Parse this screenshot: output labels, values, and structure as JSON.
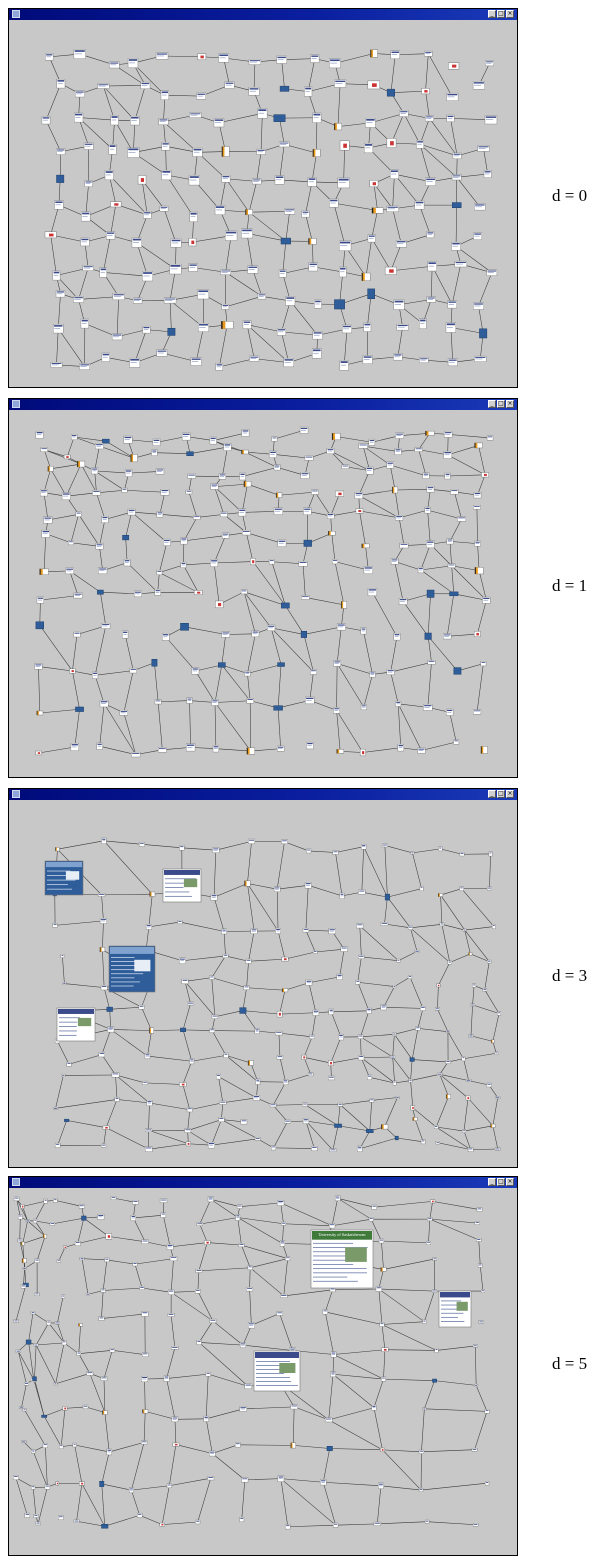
{
  "panels": [
    {
      "label": "d = 0",
      "seed": 11,
      "enlarged": []
    },
    {
      "label": "d = 1",
      "seed": 23,
      "enlarged": []
    },
    {
      "label": "d = 3",
      "seed": 37,
      "enlarged": [
        {
          "title": "",
          "theme": "blue"
        },
        {
          "title": "",
          "theme": "blue"
        },
        {
          "title": "",
          "theme": "white"
        },
        {
          "title": "",
          "theme": "white"
        }
      ]
    },
    {
      "label": "d = 5",
      "seed": 53,
      "enlarged": [
        {
          "title": "University of Saskatchewan",
          "theme": "green"
        },
        {
          "title": "",
          "theme": "white"
        },
        {
          "title": "",
          "theme": "white"
        }
      ]
    }
  ],
  "colors": {
    "window_bg": "#c8c8c8",
    "titlebar": "#000a7a",
    "edge": "#3a3a3a",
    "node": "#ffffff",
    "accent_blue": "#2e5d9a",
    "accent_orange": "#e89a1c",
    "accent_red": "#cc3333",
    "accent_green": "#3f7a3a"
  },
  "window_buttons": [
    "_",
    "□",
    "×"
  ]
}
